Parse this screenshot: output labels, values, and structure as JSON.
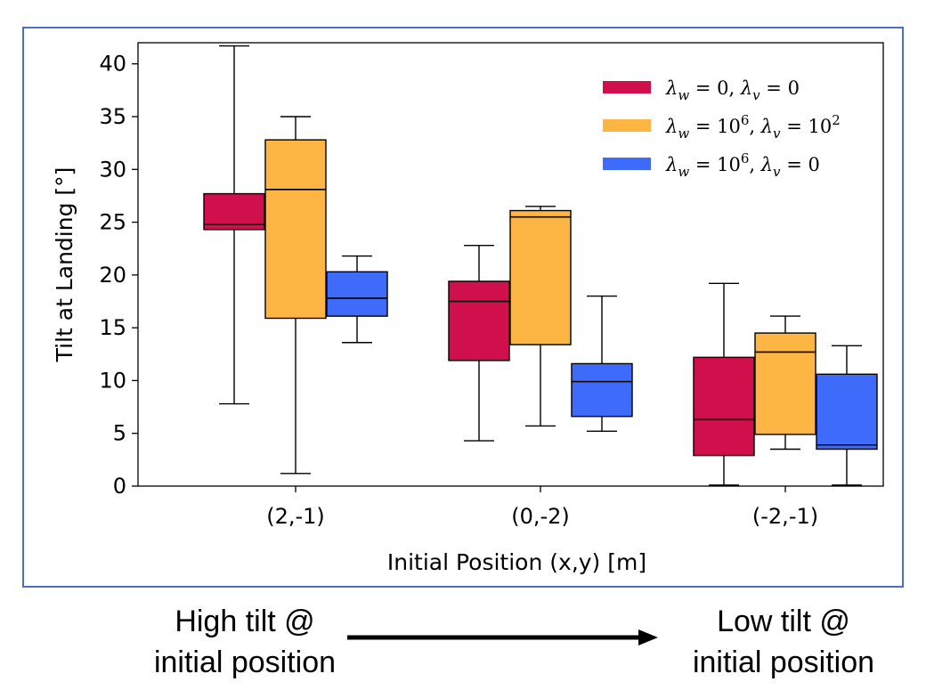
{
  "chart_data": {
    "type": "box",
    "title": "",
    "xlabel": "Initial Position (x,y) [m]",
    "ylabel": "Tilt at Landing [°]",
    "ylim": [
      0,
      42
    ],
    "yticks": [
      0,
      5,
      10,
      15,
      20,
      25,
      30,
      35,
      40
    ],
    "categories": [
      "(2,-1)",
      "(0,-2)",
      "(-2,-1)"
    ],
    "grid": false,
    "legend_position": "top-right",
    "series": [
      {
        "name": "λw = 0, λv = 0",
        "legend_tex": {
          "main": "λ",
          "sub1": "w",
          "eq1": " = 0, ",
          "main2": "λ",
          "sub2": "v",
          "eq2": " = 0",
          "sup1": "",
          "sup2": ""
        },
        "color": "#d0104c",
        "boxes": [
          {
            "min": 7.8,
            "q1": 24.3,
            "median": 24.8,
            "q3": 27.7,
            "max": 41.7
          },
          {
            "min": 4.3,
            "q1": 11.9,
            "median": 17.5,
            "q3": 19.4,
            "max": 22.8
          },
          {
            "min": 0.1,
            "q1": 2.9,
            "median": 6.3,
            "q3": 12.2,
            "max": 19.2
          }
        ]
      },
      {
        "name": "λw = 10^6, λv = 10^2",
        "legend_tex": {
          "main": "λ",
          "sub1": "w",
          "eq1": " = 10",
          "sup1": "6",
          "mid": ", ",
          "main2": "λ",
          "sub2": "v",
          "eq2": " = 10",
          "sup2": "2"
        },
        "color": "#fdb643",
        "boxes": [
          {
            "min": 1.2,
            "q1": 15.9,
            "median": 28.1,
            "q3": 32.8,
            "max": 35.0
          },
          {
            "min": 5.7,
            "q1": 13.4,
            "median": 25.5,
            "q3": 26.1,
            "max": 26.5
          },
          {
            "min": 3.5,
            "q1": 4.9,
            "median": 12.7,
            "q3": 14.5,
            "max": 16.1
          }
        ]
      },
      {
        "name": "λw = 10^6, λv = 0",
        "legend_tex": {
          "main": "λ",
          "sub1": "w",
          "eq1": " = 10",
          "sup1": "6",
          "mid": ", ",
          "main2": "λ",
          "sub2": "v",
          "eq2": " = 0",
          "sup2": ""
        },
        "color": "#3f6bfa",
        "boxes": [
          {
            "min": 13.6,
            "q1": 16.1,
            "median": 17.8,
            "q3": 20.3,
            "max": 21.8
          },
          {
            "min": 5.2,
            "q1": 6.6,
            "median": 9.9,
            "q3": 11.6,
            "max": 18.0
          },
          {
            "min": 0.1,
            "q1": 3.5,
            "median": 3.9,
            "q3": 10.6,
            "max": 13.3
          }
        ]
      }
    ]
  },
  "annotations": {
    "left_line1": "High tilt @",
    "left_line2": "initial position",
    "right_line1": "Low tilt @",
    "right_line2": "initial position"
  }
}
